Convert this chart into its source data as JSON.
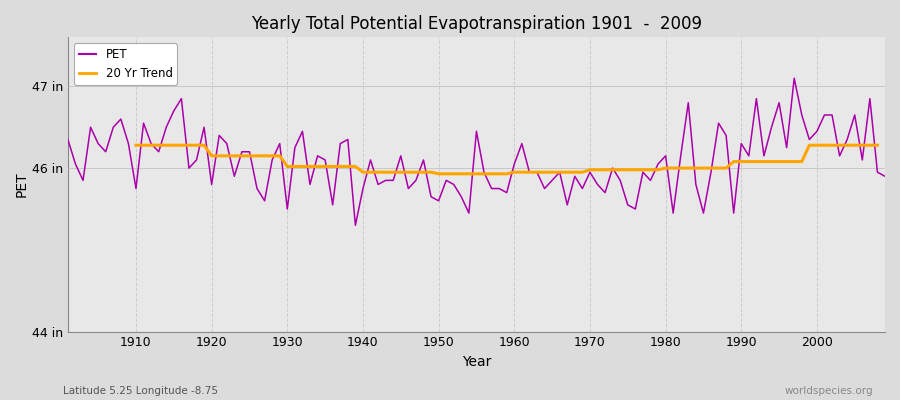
{
  "title": "Yearly Total Potential Evapotranspiration 1901  -  2009",
  "xlabel": "Year",
  "ylabel": "PET",
  "subtitle_left": "Latitude 5.25 Longitude -8.75",
  "subtitle_right": "worldspecies.org",
  "pet_color": "#aa00aa",
  "trend_color": "#ffa500",
  "background_color": "#dcdcdc",
  "plot_bg_color": "#e8e8e8",
  "ylim_min": 44.0,
  "ylim_max": 47.6,
  "years": [
    1901,
    1902,
    1903,
    1904,
    1905,
    1906,
    1907,
    1908,
    1909,
    1910,
    1911,
    1912,
    1913,
    1914,
    1915,
    1916,
    1917,
    1918,
    1919,
    1920,
    1921,
    1922,
    1923,
    1924,
    1925,
    1926,
    1927,
    1928,
    1929,
    1930,
    1931,
    1932,
    1933,
    1934,
    1935,
    1936,
    1937,
    1938,
    1939,
    1940,
    1941,
    1942,
    1943,
    1944,
    1945,
    1946,
    1947,
    1948,
    1949,
    1950,
    1951,
    1952,
    1953,
    1954,
    1955,
    1956,
    1957,
    1958,
    1959,
    1960,
    1961,
    1962,
    1963,
    1964,
    1965,
    1966,
    1967,
    1968,
    1969,
    1970,
    1971,
    1972,
    1973,
    1974,
    1975,
    1976,
    1977,
    1978,
    1979,
    1980,
    1981,
    1982,
    1983,
    1984,
    1985,
    1986,
    1987,
    1988,
    1989,
    1990,
    1991,
    1992,
    1993,
    1994,
    1995,
    1996,
    1997,
    1998,
    1999,
    2000,
    2001,
    2002,
    2003,
    2004,
    2005,
    2006,
    2007,
    2008,
    2009
  ],
  "pet_values": [
    46.35,
    46.05,
    45.85,
    46.5,
    46.3,
    46.2,
    46.5,
    46.6,
    46.3,
    45.75,
    46.55,
    46.3,
    46.2,
    46.5,
    46.7,
    46.85,
    46.0,
    46.1,
    46.5,
    45.8,
    46.4,
    46.3,
    45.9,
    46.2,
    46.2,
    45.75,
    45.6,
    46.1,
    46.3,
    45.5,
    46.25,
    46.45,
    45.8,
    46.15,
    46.1,
    45.55,
    46.3,
    46.35,
    45.3,
    45.75,
    46.1,
    45.8,
    45.85,
    45.85,
    46.15,
    45.75,
    45.85,
    46.1,
    45.65,
    45.6,
    45.85,
    45.8,
    45.65,
    45.45,
    46.45,
    45.95,
    45.75,
    45.75,
    45.7,
    46.05,
    46.3,
    45.95,
    45.95,
    45.75,
    45.85,
    45.95,
    45.55,
    45.9,
    45.75,
    45.95,
    45.8,
    45.7,
    46.0,
    45.85,
    45.55,
    45.5,
    45.95,
    45.85,
    46.05,
    46.15,
    45.45,
    46.15,
    46.8,
    45.8,
    45.45,
    45.95,
    46.55,
    46.4,
    45.45,
    46.3,
    46.15,
    46.85,
    46.15,
    46.5,
    46.8,
    46.25,
    47.1,
    46.65,
    46.35,
    46.45,
    46.65,
    46.65,
    46.15,
    46.35,
    46.65,
    46.1,
    46.85,
    45.95,
    45.9
  ],
  "trend_values": [
    null,
    null,
    null,
    null,
    null,
    null,
    null,
    null,
    null,
    46.28,
    46.28,
    46.28,
    46.28,
    46.28,
    46.28,
    46.28,
    46.28,
    46.28,
    46.28,
    46.15,
    46.15,
    46.15,
    46.15,
    46.15,
    46.15,
    46.15,
    46.15,
    46.15,
    46.15,
    46.02,
    46.02,
    46.02,
    46.02,
    46.02,
    46.02,
    46.02,
    46.02,
    46.02,
    46.02,
    45.95,
    45.95,
    45.95,
    45.95,
    45.95,
    45.95,
    45.95,
    45.95,
    45.95,
    45.95,
    45.93,
    45.93,
    45.93,
    45.93,
    45.93,
    45.93,
    45.93,
    45.93,
    45.93,
    45.93,
    45.95,
    45.95,
    45.95,
    45.95,
    45.95,
    45.95,
    45.95,
    45.95,
    45.95,
    45.95,
    45.98,
    45.98,
    45.98,
    45.98,
    45.98,
    45.98,
    45.98,
    45.98,
    45.98,
    45.98,
    46.0,
    46.0,
    46.0,
    46.0,
    46.0,
    46.0,
    46.0,
    46.0,
    46.0,
    46.08,
    46.08,
    46.08,
    46.08,
    46.08,
    46.08,
    46.08,
    46.08,
    46.08,
    46.08,
    46.28,
    46.28,
    46.28,
    46.28,
    46.28,
    46.28,
    46.28,
    46.28,
    46.28,
    46.28
  ]
}
